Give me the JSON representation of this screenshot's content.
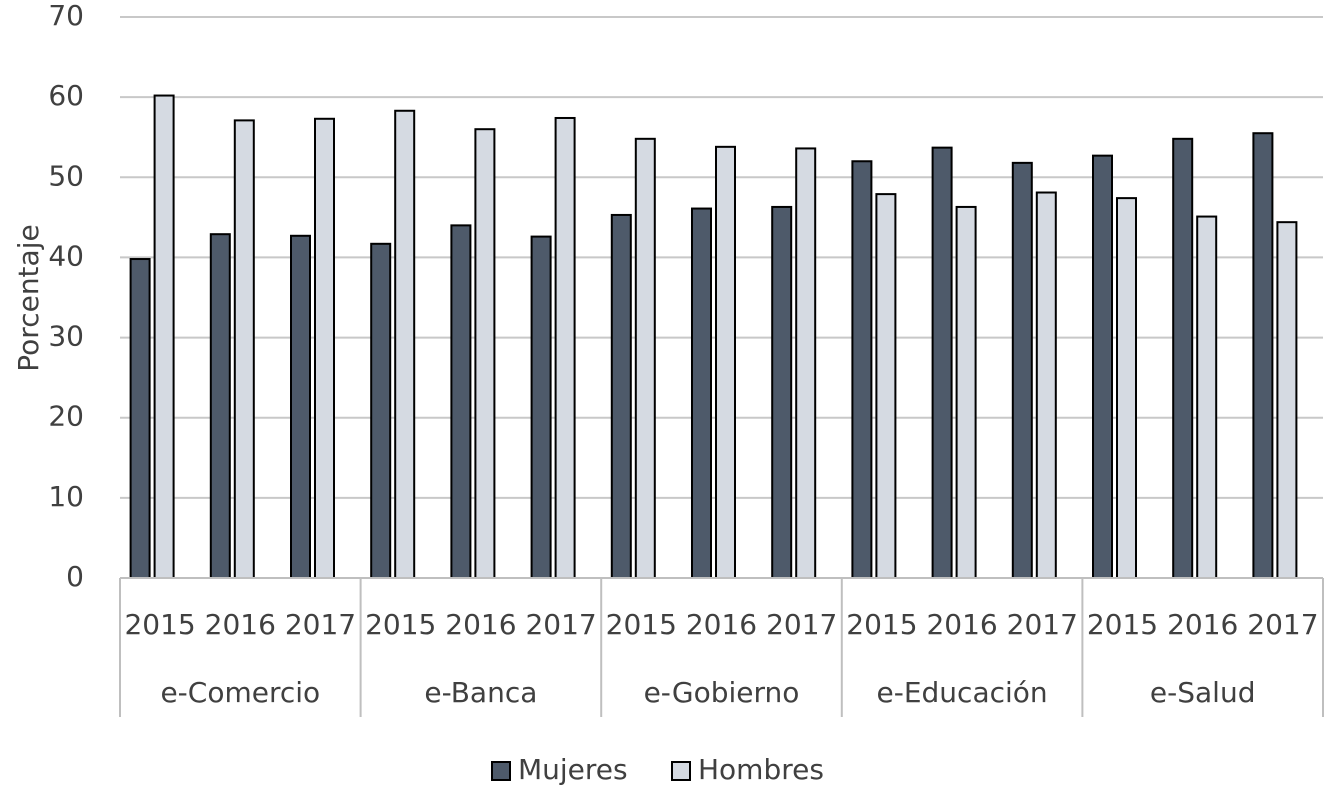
{
  "chart_data": {
    "type": "bar",
    "title": "",
    "xlabel": "",
    "ylabel": "Porcentaje",
    "ylim": [
      0,
      70
    ],
    "yticks": [
      0,
      10,
      20,
      30,
      40,
      50,
      60,
      70
    ],
    "grid": true,
    "legend_position": "bottom",
    "groups": [
      {
        "label": "e-Comercio",
        "years": [
          "2015",
          "2016",
          "2017"
        ]
      },
      {
        "label": "e-Banca",
        "years": [
          "2015",
          "2016",
          "2017"
        ]
      },
      {
        "label": "e-Gobierno",
        "years": [
          "2015",
          "2016",
          "2017"
        ]
      },
      {
        "label": "e-Educación",
        "years": [
          "2015",
          "2016",
          "2017"
        ]
      },
      {
        "label": "e-Salud",
        "years": [
          "2015",
          "2016",
          "2017"
        ]
      }
    ],
    "series": [
      {
        "name": "Mujeres",
        "color": "#4e5a6a",
        "values": [
          39.8,
          42.9,
          42.7,
          41.7,
          44.0,
          42.6,
          45.3,
          46.1,
          46.3,
          52.0,
          53.7,
          51.8,
          52.7,
          54.8,
          55.5
        ]
      },
      {
        "name": "Hombres",
        "color": "#d5dae2",
        "values": [
          60.2,
          57.1,
          57.3,
          58.3,
          56.0,
          57.4,
          54.8,
          53.8,
          53.6,
          47.9,
          46.3,
          48.1,
          47.4,
          45.1,
          44.4
        ]
      }
    ],
    "gridline_color": "#c8c8c8",
    "axis_color": "#bfbfbf"
  }
}
